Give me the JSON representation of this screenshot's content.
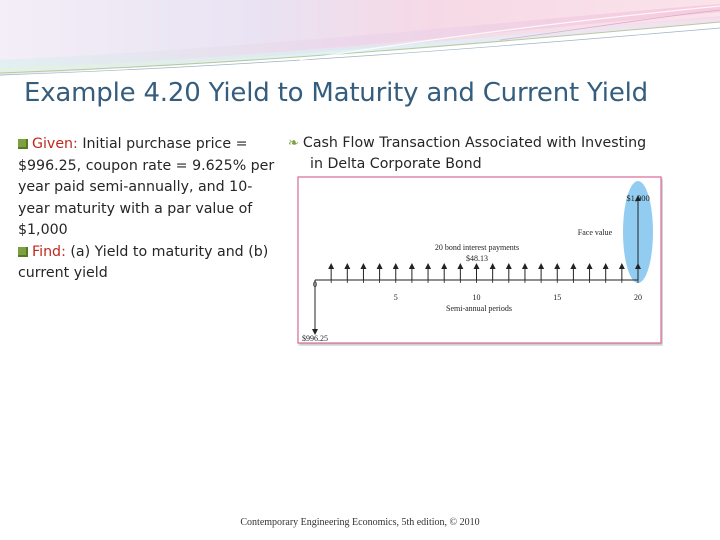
{
  "slide": {
    "title": "Example 4.20 Yield to Maturity and Current Yield",
    "given_label": "Given:",
    "given_text": " Initial purchase price = $996.25, coupon rate = 9.625% per year paid semi-annually, and 10-year maturity with a par value of $1,000",
    "find_label": "Find:",
    "find_text": " (a) Yield to maturity and (b) current yield",
    "right_heading_line1": "Cash Flow Transaction Associated with Investing",
    "right_heading_line2": "in Delta Corporate Bond",
    "footer": "Contemporary Engineering Economics, 5th edition, © 2010"
  },
  "figure": {
    "face_value": "$1,000",
    "face_value_label": "Face value",
    "payments_label_line1": "20 bond interest payments",
    "payments_label_line2": "$48.13",
    "purchase_price": "$996.25",
    "axis_label": "Semi-annual periods",
    "tick_labels": [
      "0",
      "5",
      "10",
      "15",
      "20"
    ],
    "periods": 20
  },
  "colors": {
    "title": "#355d7e",
    "keyword": "#c0281e",
    "bullet": "#7ba23f",
    "figure_border": "#d86a9a",
    "highlight": "#7fc4ee"
  }
}
